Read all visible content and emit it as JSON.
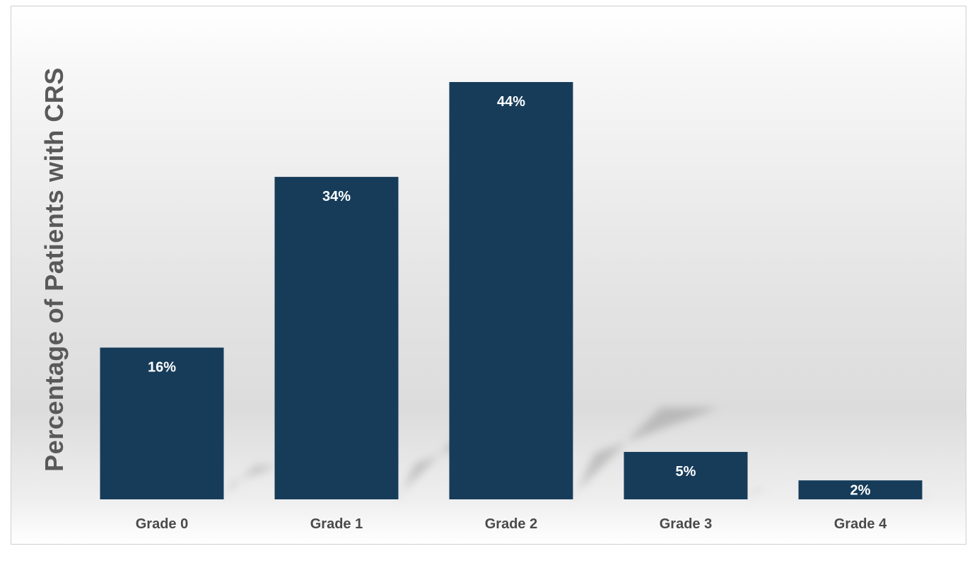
{
  "chart_data": {
    "type": "bar",
    "title": "",
    "xlabel": "",
    "ylabel": "Percentage of Patients with CRS",
    "categories": [
      "Grade 0",
      "Grade 1",
      "Grade 2",
      "Grade 3",
      "Grade 4"
    ],
    "values": [
      16,
      34,
      44,
      5,
      2
    ],
    "value_labels": [
      "16%",
      "34%",
      "44%",
      "5%",
      "2%"
    ],
    "ylim": [
      0,
      44
    ],
    "grid": false,
    "legend": "none",
    "colors": {
      "bar": "#163c5a",
      "label": "#ffffff",
      "axis_text": "#4a4a4a"
    }
  }
}
